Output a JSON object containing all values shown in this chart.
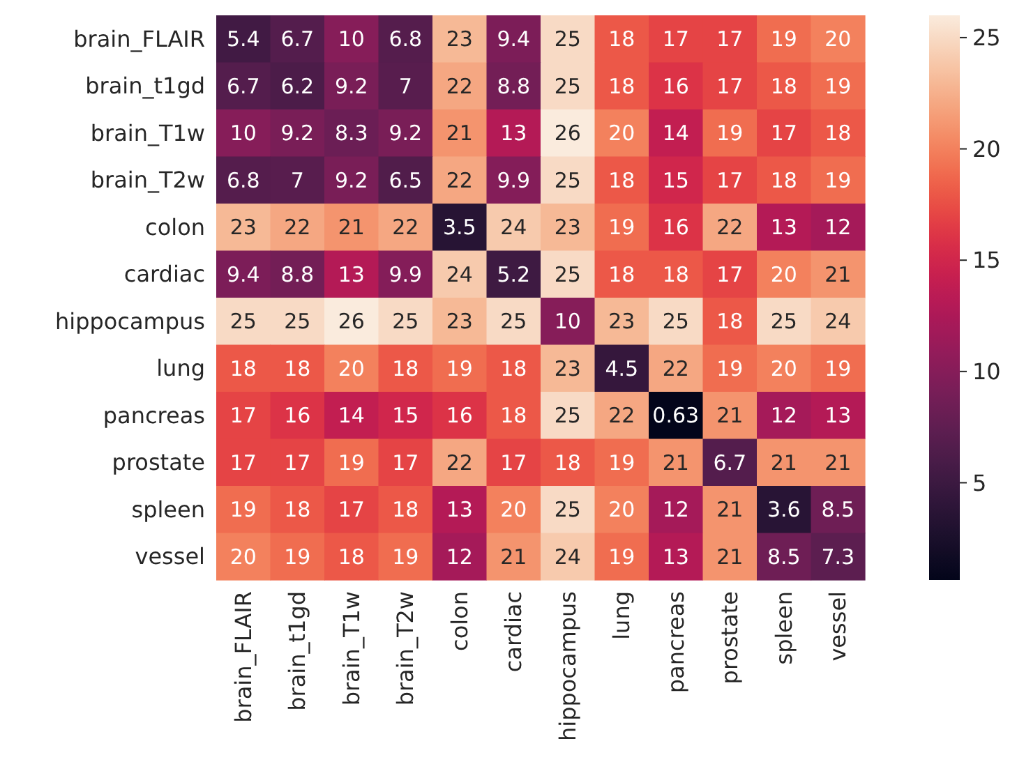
{
  "chart_data": {
    "type": "heatmap",
    "categories": [
      "brain_FLAIR",
      "brain_t1gd",
      "brain_T1w",
      "brain_T2w",
      "colon",
      "cardiac",
      "hippocampus",
      "lung",
      "pancreas",
      "prostate",
      "spleen",
      "vessel"
    ],
    "y_categories": [
      "brain_FLAIR",
      "brain_t1gd",
      "brain_T1w",
      "brain_T2w",
      "colon",
      "cardiac",
      "hippocampus",
      "lung",
      "pancreas",
      "prostate",
      "spleen",
      "vessel"
    ],
    "cells": [
      [
        5.4,
        6.7,
        10,
        6.8,
        23,
        9.4,
        25,
        18,
        17,
        17,
        19,
        20
      ],
      [
        6.7,
        6.2,
        9.2,
        7,
        22,
        8.8,
        25,
        18,
        16,
        17,
        18,
        19
      ],
      [
        10,
        9.2,
        8.3,
        9.2,
        21,
        13,
        26,
        20,
        14,
        19,
        17,
        18
      ],
      [
        6.8,
        7,
        9.2,
        6.5,
        22,
        9.9,
        25,
        18,
        15,
        17,
        18,
        19
      ],
      [
        23,
        22,
        21,
        22,
        3.5,
        24,
        23,
        19,
        16,
        22,
        13,
        12
      ],
      [
        9.4,
        8.8,
        13,
        9.9,
        24,
        5.2,
        25,
        18,
        18,
        17,
        20,
        21
      ],
      [
        25,
        25,
        26,
        25,
        23,
        25,
        10,
        23,
        25,
        18,
        25,
        24
      ],
      [
        18,
        18,
        20,
        18,
        19,
        18,
        23,
        4.5,
        22,
        19,
        20,
        19
      ],
      [
        17,
        16,
        14,
        15,
        16,
        18,
        25,
        22,
        0.63,
        21,
        12,
        13
      ],
      [
        17,
        17,
        19,
        17,
        22,
        17,
        18,
        19,
        21,
        6.7,
        21,
        21
      ],
      [
        19,
        18,
        17,
        18,
        13,
        20,
        25,
        20,
        12,
        21,
        3.6,
        8.5
      ],
      [
        20,
        19,
        18,
        19,
        12,
        21,
        24,
        19,
        13,
        21,
        8.5,
        7.3
      ]
    ],
    "clim": [
      0.63,
      26
    ],
    "cticks": [
      5,
      10,
      15,
      20,
      25
    ],
    "data_labels": true
  }
}
